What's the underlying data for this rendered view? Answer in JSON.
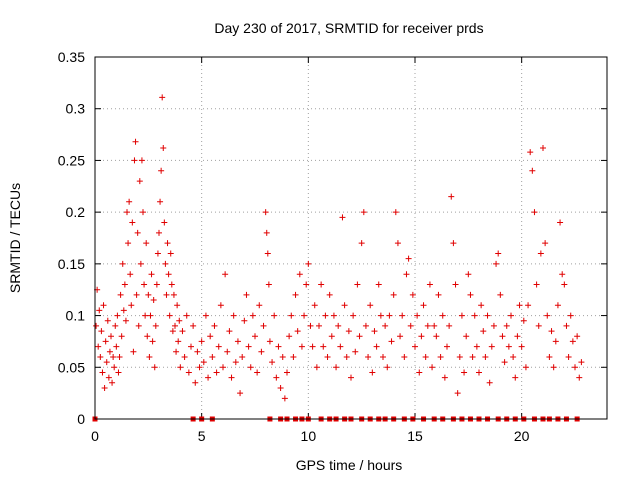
{
  "chart_data": {
    "type": "scatter",
    "title": "Day 230 of 2017, SRMTID for receiver prds",
    "xlabel": "GPS time / hours",
    "ylabel": "SRMTID / TECUs",
    "xlim": [
      0,
      24
    ],
    "ylim": [
      0,
      0.35
    ],
    "grid": true,
    "marker_color": "#e00000",
    "x_ticks": [
      0,
      5,
      10,
      15,
      20
    ],
    "x_tick_labels": [
      "0",
      "5",
      "10",
      "15",
      "20"
    ],
    "y_ticks": [
      0,
      0.05,
      0.1,
      0.15,
      0.2,
      0.25,
      0.3,
      0.35
    ],
    "y_tick_labels": [
      "0",
      "0.05",
      "0.1",
      "0.15",
      "0.2",
      "0.25",
      "0.3",
      "0.35"
    ],
    "series": [
      {
        "name": "SRMTID",
        "marker": "plus",
        "points": [
          [
            0.05,
            0.09
          ],
          [
            0.1,
            0.125
          ],
          [
            0.15,
            0.07
          ],
          [
            0.2,
            0.105
          ],
          [
            0.25,
            0.06
          ],
          [
            0.3,
            0.085
          ],
          [
            0.35,
            0.045
          ],
          [
            0.4,
            0.11
          ],
          [
            0.45,
            0.03
          ],
          [
            0.5,
            0.075
          ],
          [
            0.55,
            0.055
          ],
          [
            0.6,
            0.095
          ],
          [
            0.65,
            0.04
          ],
          [
            0.7,
            0.065
          ],
          [
            0.75,
            0.08
          ],
          [
            0.8,
            0.035
          ],
          [
            0.85,
            0.06
          ],
          [
            0.9,
            0.05
          ],
          [
            0.95,
            0.09
          ],
          [
            1.0,
            0.07
          ],
          [
            1.05,
            0.1
          ],
          [
            1.1,
            0.045
          ],
          [
            1.15,
            0.06
          ],
          [
            1.2,
            0.12
          ],
          [
            1.25,
            0.08
          ],
          [
            1.3,
            0.15
          ],
          [
            1.35,
            0.105
          ],
          [
            1.4,
            0.13
          ],
          [
            1.45,
            0.095
          ],
          [
            1.5,
            0.2
          ],
          [
            1.55,
            0.17
          ],
          [
            1.6,
            0.21
          ],
          [
            1.65,
            0.14
          ],
          [
            1.7,
            0.11
          ],
          [
            1.75,
            0.19
          ],
          [
            1.8,
            0.065
          ],
          [
            1.85,
            0.25
          ],
          [
            1.9,
            0.268
          ],
          [
            1.95,
            0.12
          ],
          [
            2.0,
            0.18
          ],
          [
            2.05,
            0.09
          ],
          [
            2.1,
            0.23
          ],
          [
            2.15,
            0.15
          ],
          [
            2.2,
            0.25
          ],
          [
            2.25,
            0.2
          ],
          [
            2.3,
            0.13
          ],
          [
            2.35,
            0.1
          ],
          [
            2.4,
            0.17
          ],
          [
            2.45,
            0.08
          ],
          [
            2.5,
            0.12
          ],
          [
            2.55,
            0.06
          ],
          [
            2.6,
            0.1
          ],
          [
            2.65,
            0.14
          ],
          [
            2.7,
            0.075
          ],
          [
            2.75,
            0.115
          ],
          [
            2.8,
            0.05
          ],
          [
            2.85,
            0.09
          ],
          [
            2.9,
            0.13
          ],
          [
            2.95,
            0.16
          ],
          [
            3.0,
            0.18
          ],
          [
            3.05,
            0.21
          ],
          [
            3.1,
            0.24
          ],
          [
            3.15,
            0.311
          ],
          [
            3.2,
            0.262
          ],
          [
            3.25,
            0.19
          ],
          [
            3.3,
            0.15
          ],
          [
            3.35,
            0.12
          ],
          [
            3.4,
            0.17
          ],
          [
            3.45,
            0.14
          ],
          [
            3.5,
            0.1
          ],
          [
            3.55,
            0.16
          ],
          [
            3.6,
            0.13
          ],
          [
            3.65,
            0.085
          ],
          [
            3.7,
            0.12
          ],
          [
            3.75,
            0.09
          ],
          [
            3.8,
            0.065
          ],
          [
            3.85,
            0.11
          ],
          [
            3.9,
            0.075
          ],
          [
            3.95,
            0.095
          ],
          [
            4.0,
            0.05
          ],
          [
            4.1,
            0.085
          ],
          [
            4.2,
            0.06
          ],
          [
            4.3,
            0.1
          ],
          [
            4.4,
            0.045
          ],
          [
            4.5,
            0.07
          ],
          [
            4.6,
            0.09
          ],
          [
            4.7,
            0.035
          ],
          [
            4.8,
            0.065
          ],
          [
            4.9,
            0.05
          ],
          [
            5.0,
            0.075
          ],
          [
            5.1,
            0.055
          ],
          [
            5.2,
            0.1
          ],
          [
            5.3,
            0.04
          ],
          [
            5.4,
            0.08
          ],
          [
            5.5,
            0.06
          ],
          [
            5.6,
            0.09
          ],
          [
            5.7,
            0.045
          ],
          [
            5.8,
            0.07
          ],
          [
            5.9,
            0.11
          ],
          [
            6.0,
            0.05
          ],
          [
            6.1,
            0.14
          ],
          [
            6.2,
            0.065
          ],
          [
            6.3,
            0.085
          ],
          [
            6.4,
            0.04
          ],
          [
            6.5,
            0.1
          ],
          [
            6.6,
            0.055
          ],
          [
            6.7,
            0.075
          ],
          [
            6.8,
            0.025
          ],
          [
            6.9,
            0.06
          ],
          [
            7.0,
            0.095
          ],
          [
            7.1,
            0.12
          ],
          [
            7.2,
            0.07
          ],
          [
            7.3,
            0.05
          ],
          [
            7.4,
            0.1
          ],
          [
            7.5,
            0.08
          ],
          [
            7.6,
            0.045
          ],
          [
            7.7,
            0.11
          ],
          [
            7.8,
            0.065
          ],
          [
            7.9,
            0.09
          ],
          [
            8.0,
            0.2
          ],
          [
            8.05,
            0.18
          ],
          [
            8.1,
            0.16
          ],
          [
            8.15,
            0.13
          ],
          [
            8.2,
            0.075
          ],
          [
            8.3,
            0.055
          ],
          [
            8.4,
            0.1
          ],
          [
            8.5,
            0.04
          ],
          [
            8.6,
            0.07
          ],
          [
            8.7,
            0.03
          ],
          [
            8.8,
            0.06
          ],
          [
            8.9,
            0.02
          ],
          [
            9.0,
            0.045
          ],
          [
            9.1,
            0.08
          ],
          [
            9.2,
            0.1
          ],
          [
            9.3,
            0.06
          ],
          [
            9.4,
            0.12
          ],
          [
            9.5,
            0.085
          ],
          [
            9.6,
            0.14
          ],
          [
            9.7,
            0.07
          ],
          [
            9.8,
            0.1
          ],
          [
            9.9,
            0.13
          ],
          [
            10.0,
            0.15
          ],
          [
            10.1,
            0.09
          ],
          [
            10.2,
            0.07
          ],
          [
            10.3,
            0.11
          ],
          [
            10.4,
            0.05
          ],
          [
            10.5,
            0.09
          ],
          [
            10.6,
            0.13
          ],
          [
            10.7,
            0.07
          ],
          [
            10.8,
            0.1
          ],
          [
            10.9,
            0.06
          ],
          [
            11.0,
            0.12
          ],
          [
            11.1,
            0.08
          ],
          [
            11.2,
            0.1
          ],
          [
            11.3,
            0.05
          ],
          [
            11.4,
            0.09
          ],
          [
            11.5,
            0.07
          ],
          [
            11.6,
            0.195
          ],
          [
            11.7,
            0.11
          ],
          [
            11.8,
            0.06
          ],
          [
            11.9,
            0.085
          ],
          [
            12.0,
            0.04
          ],
          [
            12.1,
            0.1
          ],
          [
            12.2,
            0.065
          ],
          [
            12.3,
            0.13
          ],
          [
            12.4,
            0.08
          ],
          [
            12.5,
            0.17
          ],
          [
            12.6,
            0.2
          ],
          [
            12.7,
            0.09
          ],
          [
            12.8,
            0.06
          ],
          [
            12.9,
            0.11
          ],
          [
            13.0,
            0.045
          ],
          [
            13.1,
            0.085
          ],
          [
            13.2,
            0.07
          ],
          [
            13.3,
            0.13
          ],
          [
            13.4,
            0.1
          ],
          [
            13.5,
            0.06
          ],
          [
            13.6,
            0.09
          ],
          [
            13.7,
            0.05
          ],
          [
            13.8,
            0.1
          ],
          [
            13.9,
            0.075
          ],
          [
            14.0,
            0.12
          ],
          [
            14.1,
            0.2
          ],
          [
            14.2,
            0.17
          ],
          [
            14.3,
            0.08
          ],
          [
            14.4,
            0.1
          ],
          [
            14.5,
            0.06
          ],
          [
            14.6,
            0.14
          ],
          [
            14.7,
            0.155
          ],
          [
            14.8,
            0.09
          ],
          [
            14.9,
            0.12
          ],
          [
            15.0,
            0.07
          ],
          [
            15.1,
            0.1
          ],
          [
            15.2,
            0.045
          ],
          [
            15.3,
            0.08
          ],
          [
            15.4,
            0.11
          ],
          [
            15.5,
            0.06
          ],
          [
            15.6,
            0.09
          ],
          [
            15.7,
            0.13
          ],
          [
            15.8,
            0.05
          ],
          [
            15.9,
            0.09
          ],
          [
            16.0,
            0.08
          ],
          [
            16.1,
            0.12
          ],
          [
            16.2,
            0.06
          ],
          [
            16.3,
            0.1
          ],
          [
            16.4,
            0.04
          ],
          [
            16.5,
            0.07
          ],
          [
            16.6,
            0.09
          ],
          [
            16.7,
            0.215
          ],
          [
            16.8,
            0.17
          ],
          [
            16.9,
            0.13
          ],
          [
            17.0,
            0.025
          ],
          [
            17.1,
            0.06
          ],
          [
            17.2,
            0.1
          ],
          [
            17.3,
            0.045
          ],
          [
            17.4,
            0.08
          ],
          [
            17.5,
            0.14
          ],
          [
            17.6,
            0.12
          ],
          [
            17.7,
            0.06
          ],
          [
            17.8,
            0.1
          ],
          [
            17.9,
            0.07
          ],
          [
            18.0,
            0.045
          ],
          [
            18.1,
            0.11
          ],
          [
            18.2,
            0.085
          ],
          [
            18.3,
            0.06
          ],
          [
            18.4,
            0.1
          ],
          [
            18.5,
            0.035
          ],
          [
            18.6,
            0.07
          ],
          [
            18.7,
            0.09
          ],
          [
            18.8,
            0.15
          ],
          [
            18.9,
            0.16
          ],
          [
            19.0,
            0.12
          ],
          [
            19.1,
            0.08
          ],
          [
            19.2,
            0.055
          ],
          [
            19.3,
            0.09
          ],
          [
            19.4,
            0.07
          ],
          [
            19.5,
            0.1
          ],
          [
            19.6,
            0.06
          ],
          [
            19.7,
            0.04
          ],
          [
            19.8,
            0.08
          ],
          [
            19.9,
            0.11
          ],
          [
            20.0,
            0.07
          ],
          [
            20.1,
            0.095
          ],
          [
            20.2,
            0.05
          ],
          [
            20.3,
            0.11
          ],
          [
            20.4,
            0.258
          ],
          [
            20.5,
            0.24
          ],
          [
            20.6,
            0.2
          ],
          [
            20.7,
            0.13
          ],
          [
            20.8,
            0.09
          ],
          [
            20.9,
            0.16
          ],
          [
            21.0,
            0.262
          ],
          [
            21.1,
            0.17
          ],
          [
            21.2,
            0.1
          ],
          [
            21.3,
            0.06
          ],
          [
            21.4,
            0.085
          ],
          [
            21.5,
            0.05
          ],
          [
            21.6,
            0.075
          ],
          [
            21.7,
            0.11
          ],
          [
            21.8,
            0.19
          ],
          [
            21.9,
            0.14
          ],
          [
            22.0,
            0.13
          ],
          [
            22.1,
            0.09
          ],
          [
            22.2,
            0.06
          ],
          [
            22.3,
            0.1
          ],
          [
            22.4,
            0.075
          ],
          [
            22.5,
            0.05
          ],
          [
            22.6,
            0.08
          ],
          [
            22.7,
            0.04
          ],
          [
            22.8,
            0.055
          ]
        ]
      },
      {
        "name": "zero-level markers",
        "marker": "square",
        "points": [
          [
            0.0,
            0
          ],
          [
            4.6,
            0
          ],
          [
            5.0,
            0
          ],
          [
            5.5,
            0
          ],
          [
            8.2,
            0
          ],
          [
            8.7,
            0
          ],
          [
            9.0,
            0
          ],
          [
            9.4,
            0
          ],
          [
            9.7,
            0
          ],
          [
            10.0,
            0
          ],
          [
            10.6,
            0
          ],
          [
            11.0,
            0
          ],
          [
            11.3,
            0
          ],
          [
            11.7,
            0
          ],
          [
            12.0,
            0
          ],
          [
            12.5,
            0
          ],
          [
            12.9,
            0
          ],
          [
            13.3,
            0
          ],
          [
            13.6,
            0
          ],
          [
            14.0,
            0
          ],
          [
            14.5,
            0
          ],
          [
            14.9,
            0
          ],
          [
            15.4,
            0
          ],
          [
            15.9,
            0
          ],
          [
            16.3,
            0
          ],
          [
            16.8,
            0
          ],
          [
            17.2,
            0
          ],
          [
            17.6,
            0
          ],
          [
            18.0,
            0
          ],
          [
            18.4,
            0
          ],
          [
            18.9,
            0
          ],
          [
            19.3,
            0
          ],
          [
            19.7,
            0
          ],
          [
            20.1,
            0
          ],
          [
            20.6,
            0
          ],
          [
            21.0,
            0
          ],
          [
            21.3,
            0
          ],
          [
            21.7,
            0
          ],
          [
            22.1,
            0
          ],
          [
            22.6,
            0
          ]
        ]
      }
    ]
  }
}
